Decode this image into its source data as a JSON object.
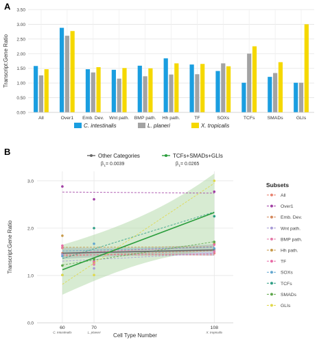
{
  "panel_labels": {
    "a": "A",
    "b": "B"
  },
  "chart_data": [
    {
      "type": "bar",
      "panel": "A",
      "ylabel": "Transcript:Gene Ratio",
      "ylim": [
        0,
        3.5
      ],
      "yticks": [
        0.0,
        0.5,
        1.0,
        1.5,
        2.0,
        2.5,
        3.0,
        3.5
      ],
      "ytick_labels": [
        "0.00",
        "0.50",
        "1.00",
        "1.50",
        "2.00",
        "2.50",
        "3.00",
        "3.50"
      ],
      "grid": true,
      "legend_position": "bottom",
      "categories": [
        "All",
        "Over1",
        "Emb. Dev.",
        "Wnt path.",
        "BMP path.",
        "Hh path.",
        "TF",
        "SOXs",
        "TCFs",
        "SMADs",
        "GLIs"
      ],
      "series": [
        {
          "name": "C. intestinalis",
          "color": "#1a9ee0",
          "values": [
            1.58,
            2.88,
            1.47,
            1.45,
            1.59,
            1.84,
            1.63,
            1.41,
            1.01,
            1.21,
            1.01
          ]
        },
        {
          "name": "L. planeri",
          "color": "#a3a3a3",
          "values": [
            1.26,
            2.61,
            1.36,
            1.15,
            1.23,
            1.29,
            1.3,
            1.67,
            2.0,
            1.34,
            1.01
          ]
        },
        {
          "name": "X. tropicalis",
          "color": "#f5d800",
          "values": [
            1.47,
            2.77,
            1.54,
            1.51,
            1.5,
            1.67,
            1.65,
            1.57,
            2.25,
            1.71,
            3.0
          ]
        }
      ]
    },
    {
      "type": "scatter",
      "panel": "B",
      "xlabel": "Cell Type Number",
      "ylabel": "Transcript:Gene Ratio",
      "xlim": [
        52,
        114
      ],
      "ylim": [
        0,
        3.2
      ],
      "xticks": [
        60,
        70,
        108
      ],
      "xtick_sublabels": [
        "C. intestinalis",
        "L. planeri",
        "X. tropicalis"
      ],
      "yticks": [
        0.0,
        1.0,
        2.0,
        3.0
      ],
      "ytick_labels": [
        "0.0",
        "1.0",
        "2.0",
        "3.0"
      ],
      "grid": true,
      "top_legend": [
        {
          "label": "Other Categories",
          "color": "#666666",
          "beta_label": "β",
          "beta_sub": "1",
          "beta_value": " = 0.0039"
        },
        {
          "label": "TCFs+SMADs+GLIs",
          "color": "#2a9d3c",
          "beta_label": "β",
          "beta_sub": "1",
          "beta_value": " = 0.0265"
        }
      ],
      "trend_lines": [
        {
          "name": "Other Categories",
          "color": "#666666",
          "x": [
            60,
            108
          ],
          "y": [
            1.47,
            1.54
          ],
          "band_lower": [
            1.38,
            1.45
          ],
          "band_upper": [
            1.56,
            1.63
          ],
          "band_color": "#8a8fb8"
        },
        {
          "name": "TCFs+SMADs+GLIs",
          "color": "#2a9d3c",
          "x": [
            60,
            108
          ],
          "y": [
            1.12,
            2.33
          ],
          "band_lower": [
            0.73,
            1.72
          ],
          "band_upper": [
            1.51,
            2.94
          ],
          "band_color": "#a7d39b"
        }
      ],
      "subsets_title": "Subsets",
      "subsets": [
        {
          "name": "All",
          "color": "#e8826f",
          "x": [
            60,
            70,
            108
          ],
          "y": [
            1.58,
            1.26,
            1.47
          ]
        },
        {
          "name": "Over1",
          "color": "#a13fa4",
          "x": [
            60,
            70,
            108
          ],
          "y": [
            2.88,
            2.61,
            2.77
          ]
        },
        {
          "name": "Emb. Dev.",
          "color": "#d4885c",
          "x": [
            60,
            70,
            108
          ],
          "y": [
            1.47,
            1.36,
            1.54
          ]
        },
        {
          "name": "Wnt path.",
          "color": "#a79bd6",
          "x": [
            60,
            70,
            108
          ],
          "y": [
            1.45,
            1.15,
            1.51
          ]
        },
        {
          "name": "BMP path.",
          "color": "#e47aa8",
          "x": [
            60,
            70,
            108
          ],
          "y": [
            1.59,
            1.23,
            1.5
          ]
        },
        {
          "name": "Hh path.",
          "color": "#c79a4a",
          "x": [
            60,
            70,
            108
          ],
          "y": [
            1.84,
            1.29,
            1.67
          ]
        },
        {
          "name": "TF",
          "color": "#e86aa6",
          "x": [
            60,
            70,
            108
          ],
          "y": [
            1.63,
            1.3,
            1.65
          ]
        },
        {
          "name": "SOXs",
          "color": "#63a7cf",
          "x": [
            60,
            70,
            108
          ],
          "y": [
            1.41,
            1.67,
            1.57
          ]
        },
        {
          "name": "TCFs",
          "color": "#2e9e84",
          "x": [
            60,
            70,
            108
          ],
          "y": [
            1.01,
            2.0,
            2.25
          ]
        },
        {
          "name": "SMADs",
          "color": "#5da64a",
          "x": [
            60,
            70,
            108
          ],
          "y": [
            1.21,
            1.34,
            1.71
          ]
        },
        {
          "name": "GLIs",
          "color": "#e0d84a",
          "x": [
            60,
            70,
            108
          ],
          "y": [
            1.01,
            1.01,
            3.0
          ]
        }
      ]
    }
  ]
}
